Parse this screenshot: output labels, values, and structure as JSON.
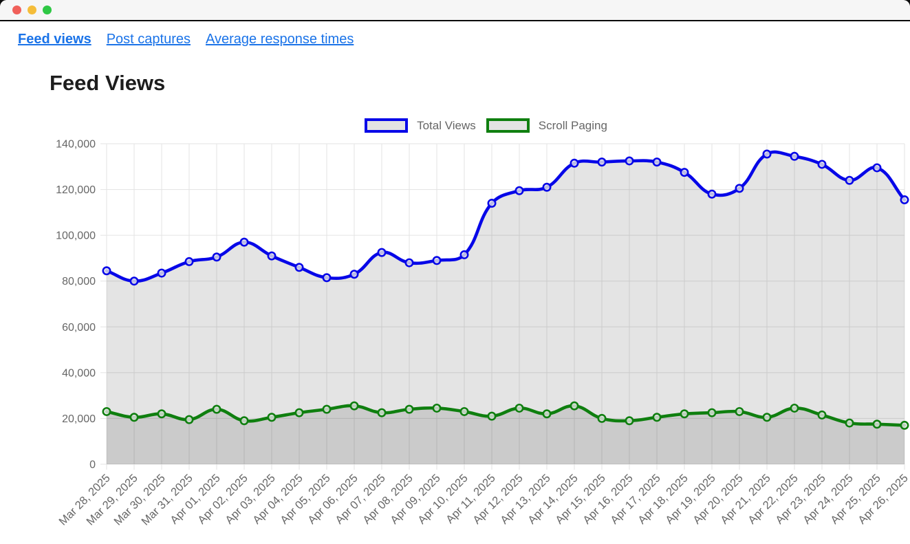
{
  "window": {
    "controls": [
      "close",
      "minimize",
      "maximize"
    ]
  },
  "nav": {
    "items": [
      {
        "label": "Feed views",
        "active": true
      },
      {
        "label": "Post captures",
        "active": false
      },
      {
        "label": "Average response times",
        "active": false
      }
    ],
    "link_color": "#1a73e8"
  },
  "page": {
    "title": "Feed Views"
  },
  "chart_data": {
    "type": "line",
    "title": "Feed Views",
    "xlabel": "",
    "ylabel": "",
    "ylim": [
      0,
      140000
    ],
    "ytick_step": 20000,
    "grid": true,
    "legend_position": "top",
    "x": [
      "Mar 28, 2025",
      "Mar 29, 2025",
      "Mar 30, 2025",
      "Mar 31, 2025",
      "Apr 01, 2025",
      "Apr 02, 2025",
      "Apr 03, 2025",
      "Apr 04, 2025",
      "Apr 05, 2025",
      "Apr 06, 2025",
      "Apr 07, 2025",
      "Apr 08, 2025",
      "Apr 09, 2025",
      "Apr 10, 2025",
      "Apr 11, 2025",
      "Apr 12, 2025",
      "Apr 13, 2025",
      "Apr 14, 2025",
      "Apr 15, 2025",
      "Apr 16, 2025",
      "Apr 17, 2025",
      "Apr 18, 2025",
      "Apr 19, 2025",
      "Apr 20, 2025",
      "Apr 21, 2025",
      "Apr 22, 2025",
      "Apr 23, 2025",
      "Apr 24, 2025",
      "Apr 25, 2025",
      "Apr 26, 2025"
    ],
    "series": [
      {
        "name": "Total Views",
        "color": "#0707e8",
        "values": [
          84500,
          80000,
          83500,
          88500,
          90500,
          97000,
          91000,
          86000,
          81500,
          83000,
          92500,
          88000,
          89000,
          91500,
          114000,
          119500,
          121000,
          131500,
          132000,
          132500,
          132000,
          127500,
          118000,
          120500,
          135500,
          134500,
          131000,
          124000,
          129500,
          115500
        ]
      },
      {
        "name": "Scroll Paging",
        "color": "#0f7f0f",
        "values": [
          23000,
          20500,
          22000,
          19500,
          24000,
          19000,
          20500,
          22500,
          24000,
          25500,
          22500,
          24000,
          24500,
          23000,
          21000,
          24500,
          22000,
          25500,
          20000,
          19000,
          20500,
          22000,
          22500,
          23000,
          20500,
          24500,
          21500,
          18000,
          17500,
          17000
        ]
      }
    ],
    "area_fill": "rgba(0,0,0,0.105)",
    "grid_color": "#e3e3e3",
    "tick_text_color": "#666"
  }
}
